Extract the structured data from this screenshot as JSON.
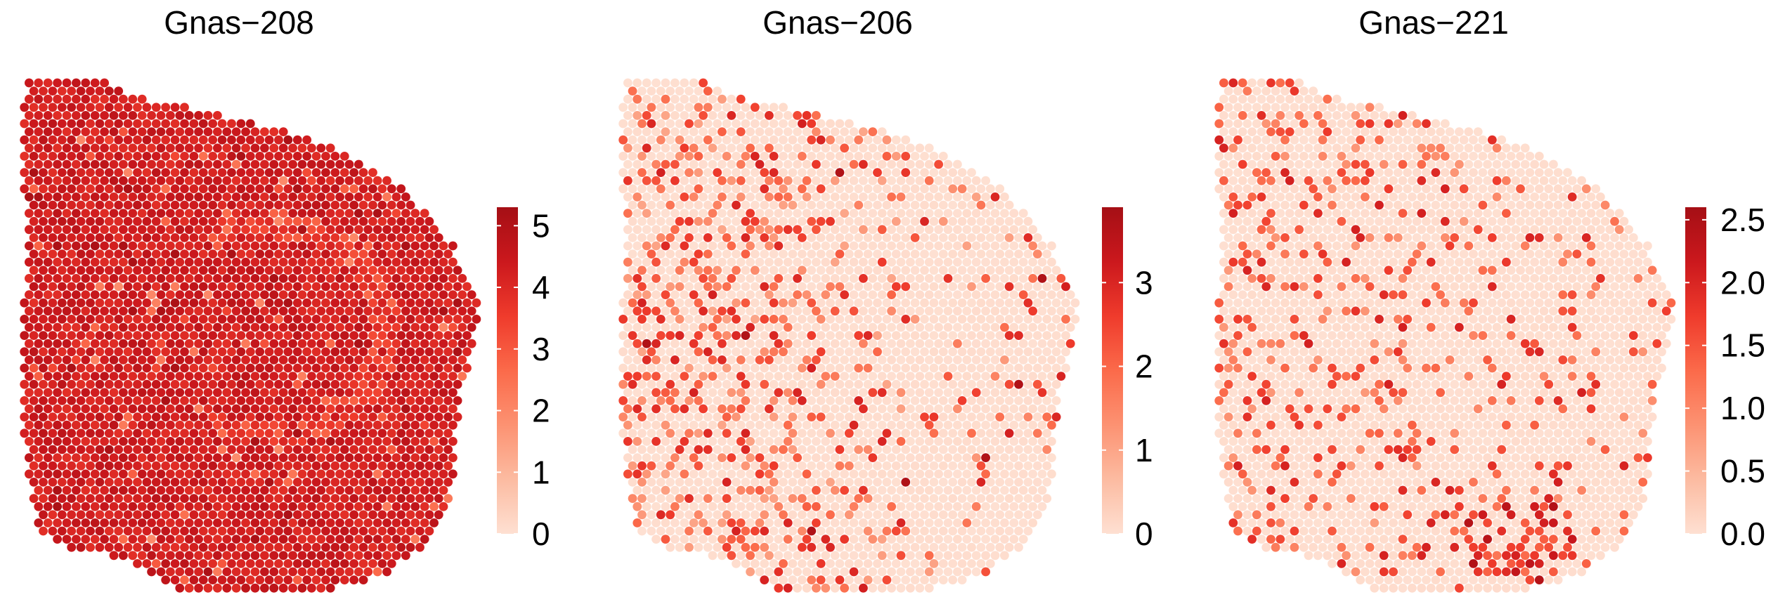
{
  "chart_data": [
    {
      "type": "scatter",
      "title": "Gnas−208",
      "colorbar": {
        "min": 0,
        "max": 5.3,
        "ticks": [
          0,
          1,
          2,
          3,
          4,
          5
        ],
        "tick_labels": [
          "0",
          "1",
          "2",
          "3",
          "4",
          "5"
        ]
      },
      "colormap": [
        "#fee0d2",
        "#fcbba1",
        "#fc9272",
        "#fb6a4a",
        "#ef3b2c",
        "#cb181d",
        "#a50f15"
      ],
      "tissue": "whole-section spot grid; high expression throughout (mostly 3.5–5), lighter hippocampal band in centre",
      "pattern": "high"
    },
    {
      "type": "scatter",
      "title": "Gnas−206",
      "colorbar": {
        "min": 0,
        "max": 3.9,
        "ticks": [
          0,
          1,
          2,
          3
        ],
        "tick_labels": [
          "0",
          "1",
          "2",
          "3"
        ]
      },
      "colormap": [
        "#fee0d2",
        "#fcbba1",
        "#fc9272",
        "#fb6a4a",
        "#ef3b2c",
        "#cb181d",
        "#a50f15"
      ],
      "tissue": "same section; mostly near 0 with scattered spots up to about 3.8, denser on the left side",
      "pattern": "sparse-left"
    },
    {
      "type": "scatter",
      "title": "Gnas−221",
      "colorbar": {
        "min": 0,
        "max": 2.6,
        "ticks": [
          0,
          0.5,
          1,
          1.5,
          2,
          2.5
        ],
        "tick_labels": [
          "0.0",
          "0.5",
          "1.0",
          "1.5",
          "2.0",
          "2.5"
        ]
      },
      "colormap": [
        "#fee0d2",
        "#fcbba1",
        "#fc9272",
        "#fb6a4a",
        "#ef3b2c",
        "#cb181d",
        "#a50f15"
      ],
      "tissue": "same section; mostly near 0, scattered spots, a dense cluster near the bottom centre",
      "pattern": "sparse-bottom"
    }
  ]
}
